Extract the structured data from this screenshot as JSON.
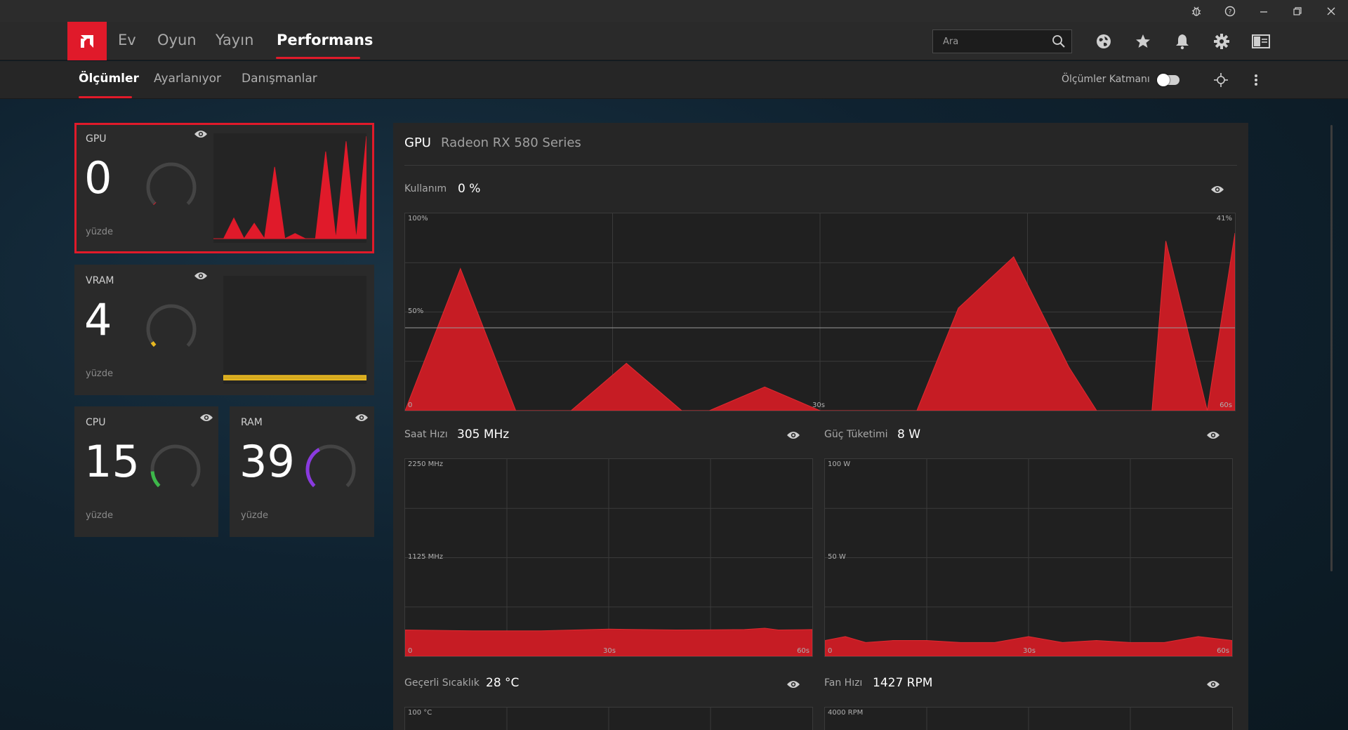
{
  "colors": {
    "accent": "#e01a2a",
    "vram": "#e8b820",
    "cpu": "#3db84a",
    "ram": "#8a3adf",
    "gaugeTrack": "#444444"
  },
  "nav": {
    "tabs": [
      {
        "label": "Ev"
      },
      {
        "label": "Oyun"
      },
      {
        "label": "Yayın"
      },
      {
        "label": "Performans",
        "active": true
      }
    ]
  },
  "search": {
    "placeholder": "Ara"
  },
  "subnav": {
    "tabs": [
      {
        "label": "Ölçümler",
        "active": true
      },
      {
        "label": "Ayarlanıyor"
      },
      {
        "label": "Danışmanlar"
      }
    ],
    "overlay_label": "Ölçümler Katmanı",
    "overlay_on": false
  },
  "tiles": {
    "gpu": {
      "label": "GPU",
      "value": "0",
      "unit": "yüzde",
      "percent": 0
    },
    "vram": {
      "label": "VRAM",
      "value": "4",
      "unit": "yüzde",
      "percent": 4
    },
    "cpu": {
      "label": "CPU",
      "value": "15",
      "unit": "yüzde",
      "percent": 15
    },
    "ram": {
      "label": "RAM",
      "value": "39",
      "unit": "yüzde",
      "percent": 39
    }
  },
  "panel": {
    "title": "GPU",
    "device": "Radeon RX 580 Series",
    "usage": {
      "label": "Kullanım",
      "value": "0 %"
    },
    "clock": {
      "label": "Saat Hızı",
      "value": "305 MHz"
    },
    "power": {
      "label": "Güç Tüketimi",
      "value": "8 W"
    },
    "temp": {
      "label": "Geçerli Sıcaklık",
      "value": "28 °C"
    },
    "fan": {
      "label": "Fan Hızı",
      "value": "1427 RPM"
    }
  },
  "chart_data": [
    {
      "type": "area",
      "name": "usage",
      "x": [
        0,
        4,
        8,
        12,
        16,
        20,
        22,
        26,
        30,
        33,
        37,
        40,
        44,
        48,
        50,
        52,
        54,
        55,
        58,
        60
      ],
      "y": [
        0,
        72,
        0,
        0,
        24,
        0,
        0,
        12,
        0,
        0,
        0,
        52,
        78,
        22,
        0,
        0,
        0,
        86,
        0,
        90
      ],
      "ylim": [
        0,
        100
      ],
      "xlim": [
        0,
        60
      ],
      "y_ticks": [
        "0",
        "50%",
        "100%"
      ],
      "x_ticks": [
        "30s",
        "60s"
      ],
      "current_label": "41%"
    },
    {
      "type": "area",
      "name": "clock",
      "x": [
        0,
        10,
        20,
        30,
        40,
        50,
        53,
        55,
        60
      ],
      "y": [
        300,
        290,
        290,
        310,
        300,
        305,
        320,
        300,
        305
      ],
      "ylim": [
        0,
        2250
      ],
      "xlim": [
        0,
        60
      ],
      "y_ticks": [
        "0",
        "1125 MHz",
        "2250 MHz"
      ],
      "x_ticks": [
        "30s",
        "60s"
      ]
    },
    {
      "type": "area",
      "name": "power",
      "x": [
        0,
        3,
        6,
        10,
        15,
        20,
        25,
        30,
        35,
        40,
        45,
        50,
        55,
        60
      ],
      "y": [
        8,
        10,
        7,
        8,
        8,
        7,
        7,
        10,
        7,
        8,
        7,
        7,
        10,
        8
      ],
      "ylim": [
        0,
        100
      ],
      "xlim": [
        0,
        60
      ],
      "y_ticks": [
        "0",
        "50 W",
        "100 W"
      ],
      "x_ticks": [
        "30s",
        "60s"
      ]
    },
    {
      "type": "area",
      "name": "temp",
      "ylim": [
        0,
        100
      ],
      "y_ticks": [
        "100 °C"
      ]
    },
    {
      "type": "area",
      "name": "fan",
      "ylim": [
        0,
        4000
      ],
      "y_ticks": [
        "4000 RPM"
      ]
    }
  ],
  "mini": {
    "gpu": [
      0,
      0,
      20,
      0,
      15,
      0,
      70,
      0,
      5,
      0,
      0,
      85,
      0,
      95,
      0,
      100
    ],
    "vram": [
      4,
      4,
      4,
      4,
      4,
      4,
      4,
      4,
      4,
      4
    ]
  }
}
